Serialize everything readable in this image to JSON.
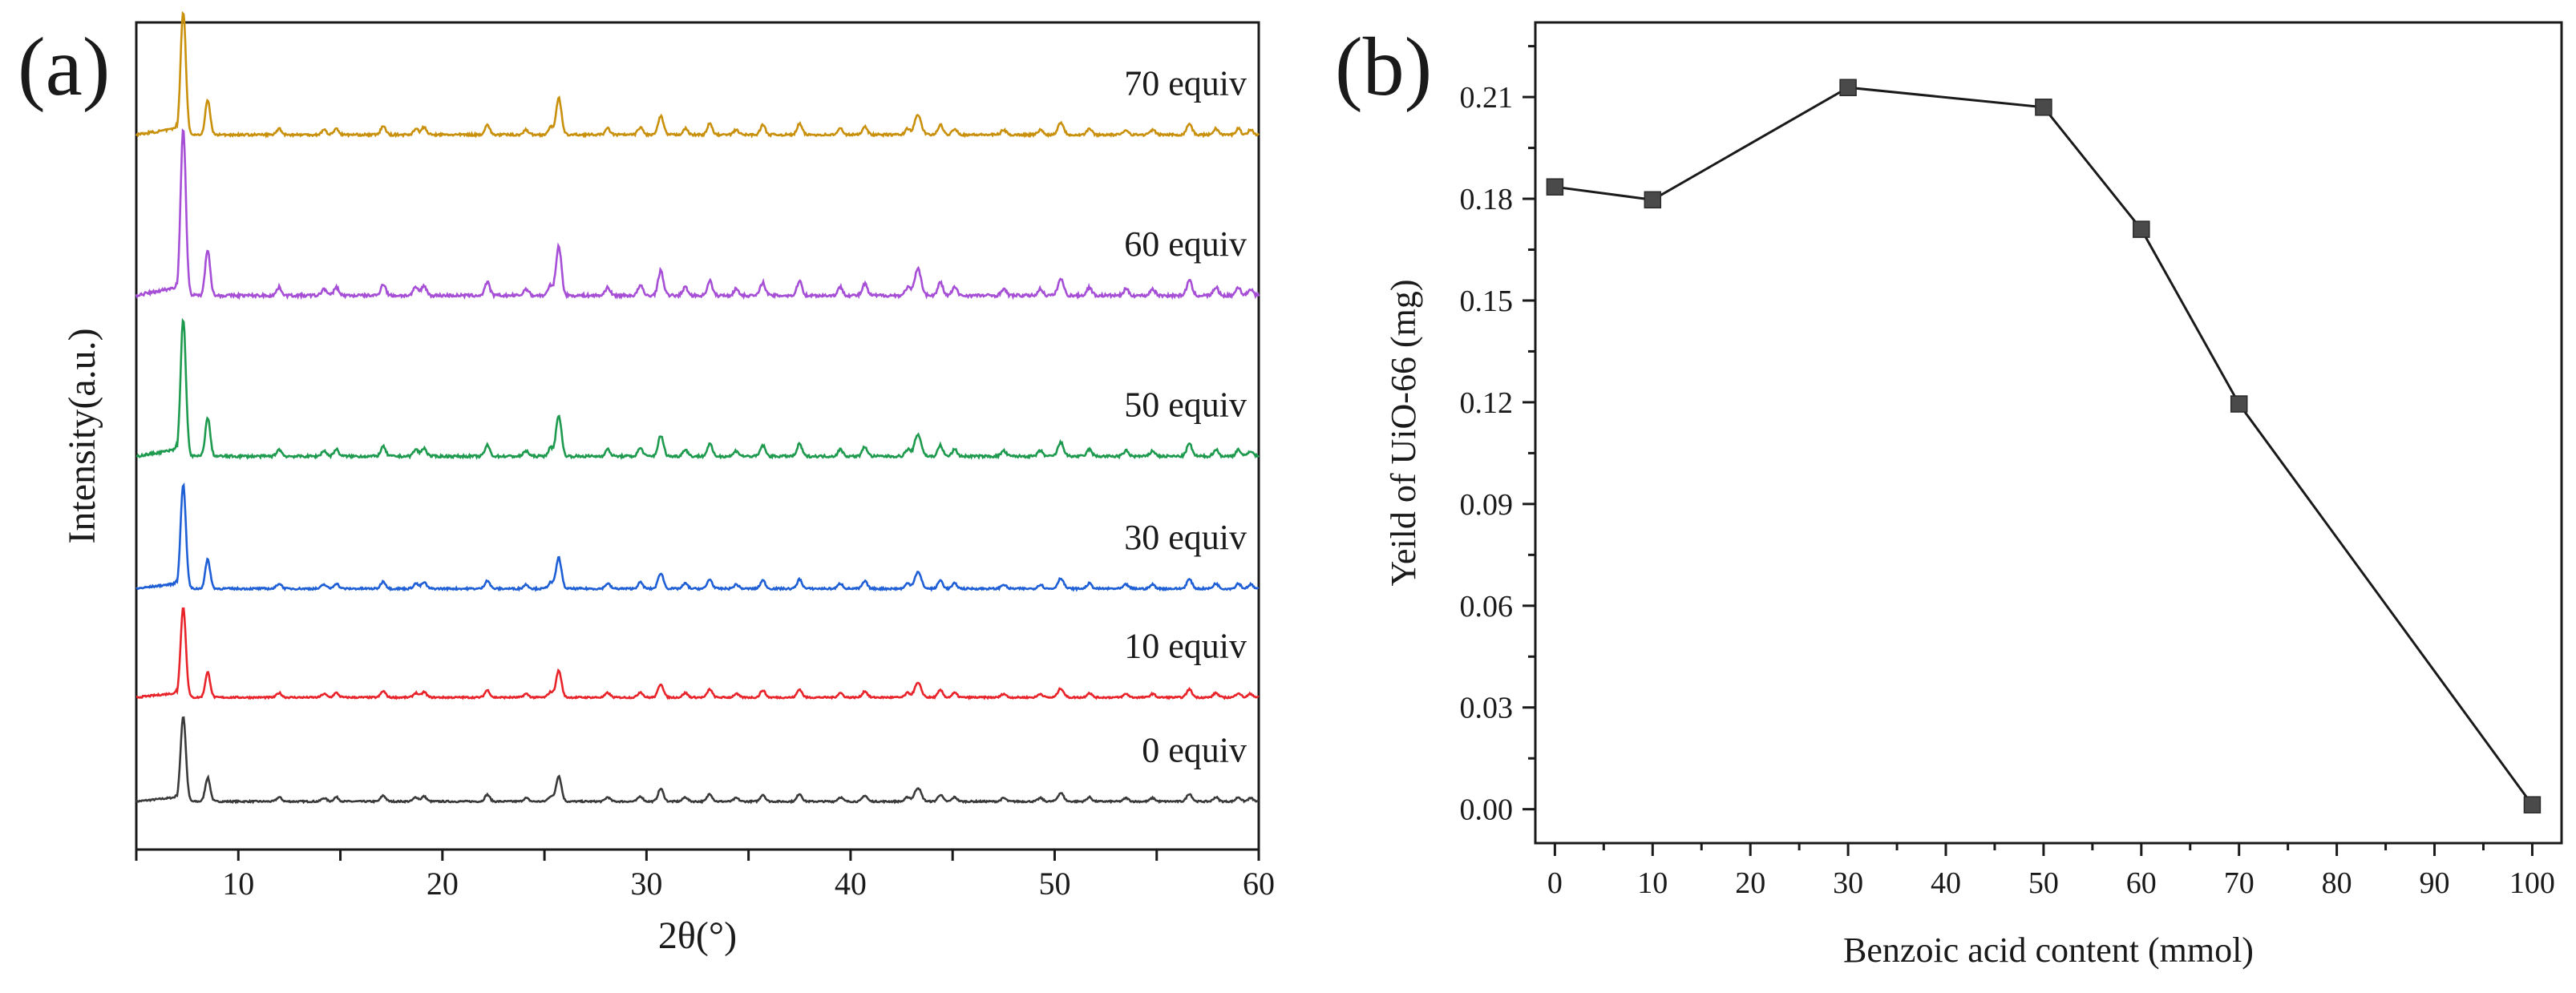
{
  "chart_data": [
    {
      "panel_label": "(a)",
      "type": "line",
      "xlabel": "2θ(°)",
      "ylabel": "Intensity(a.u.)",
      "xlim": [
        5,
        60
      ],
      "xticks": [
        10,
        20,
        30,
        40,
        50,
        60
      ],
      "yticks": [],
      "grid": false,
      "legend": "inline labels right of each trace",
      "series": [
        {
          "name": "0  equiv",
          "color": "#3a3a3a",
          "baseline": 0.0,
          "scale": 0.9
        },
        {
          "name": "10 equiv",
          "color": "#e8232a",
          "baseline": 1.1,
          "scale": 0.95
        },
        {
          "name": "30 equiv",
          "color": "#1f5fd6",
          "baseline": 2.25,
          "scale": 1.1
        },
        {
          "name": "50 equiv",
          "color": "#1e9a4e",
          "baseline": 3.65,
          "scale": 1.45
        },
        {
          "name": "60 equiv",
          "color": "#a64fd6",
          "baseline": 5.35,
          "scale": 1.75
        },
        {
          "name": "70 equiv",
          "color": "#c9900c",
          "baseline": 7.05,
          "scale": 1.3
        }
      ],
      "peaks": [
        {
          "x": 7.3,
          "h": 1.0,
          "w": 0.13
        },
        {
          "x": 8.5,
          "h": 0.28,
          "w": 0.12
        },
        {
          "x": 12.0,
          "h": 0.05,
          "w": 0.12
        },
        {
          "x": 14.2,
          "h": 0.04,
          "w": 0.12
        },
        {
          "x": 14.8,
          "h": 0.05,
          "w": 0.12
        },
        {
          "x": 17.1,
          "h": 0.07,
          "w": 0.12
        },
        {
          "x": 18.7,
          "h": 0.05,
          "w": 0.12
        },
        {
          "x": 19.1,
          "h": 0.06,
          "w": 0.12
        },
        {
          "x": 22.2,
          "h": 0.08,
          "w": 0.12
        },
        {
          "x": 24.1,
          "h": 0.04,
          "w": 0.12
        },
        {
          "x": 25.3,
          "h": 0.06,
          "w": 0.12
        },
        {
          "x": 25.7,
          "h": 0.3,
          "w": 0.13
        },
        {
          "x": 28.1,
          "h": 0.05,
          "w": 0.12
        },
        {
          "x": 29.7,
          "h": 0.06,
          "w": 0.12
        },
        {
          "x": 30.7,
          "h": 0.15,
          "w": 0.13
        },
        {
          "x": 31.9,
          "h": 0.05,
          "w": 0.12
        },
        {
          "x": 33.1,
          "h": 0.09,
          "w": 0.12
        },
        {
          "x": 34.4,
          "h": 0.04,
          "w": 0.12
        },
        {
          "x": 35.7,
          "h": 0.08,
          "w": 0.12
        },
        {
          "x": 37.5,
          "h": 0.09,
          "w": 0.12
        },
        {
          "x": 39.5,
          "h": 0.05,
          "w": 0.12
        },
        {
          "x": 40.7,
          "h": 0.07,
          "w": 0.12
        },
        {
          "x": 42.8,
          "h": 0.05,
          "w": 0.12
        },
        {
          "x": 43.3,
          "h": 0.16,
          "w": 0.16
        },
        {
          "x": 44.4,
          "h": 0.08,
          "w": 0.12
        },
        {
          "x": 45.1,
          "h": 0.05,
          "w": 0.12
        },
        {
          "x": 47.5,
          "h": 0.04,
          "w": 0.12
        },
        {
          "x": 49.3,
          "h": 0.04,
          "w": 0.12
        },
        {
          "x": 50.3,
          "h": 0.1,
          "w": 0.14
        },
        {
          "x": 51.7,
          "h": 0.05,
          "w": 0.12
        },
        {
          "x": 53.5,
          "h": 0.04,
          "w": 0.12
        },
        {
          "x": 54.8,
          "h": 0.04,
          "w": 0.12
        },
        {
          "x": 56.6,
          "h": 0.09,
          "w": 0.13
        },
        {
          "x": 57.9,
          "h": 0.05,
          "w": 0.12
        },
        {
          "x": 59.0,
          "h": 0.05,
          "w": 0.12
        },
        {
          "x": 59.6,
          "h": 0.04,
          "w": 0.12
        }
      ]
    },
    {
      "panel_label": "(b)",
      "type": "line",
      "xlabel": "Benzoic acid content (mmol)",
      "ylabel": "Yeild of UiO-66 (mg)",
      "xlim": [
        -2,
        103
      ],
      "ylim": [
        -0.01,
        0.232
      ],
      "xticks": [
        0,
        10,
        20,
        30,
        40,
        50,
        60,
        70,
        80,
        90,
        100
      ],
      "yticks": [
        "0.00",
        "0.03",
        "0.06",
        "0.09",
        "0.12",
        "0.15",
        "0.18",
        "0.21"
      ],
      "grid": false,
      "marker": "square",
      "line_color": "#1a1a1a",
      "marker_color": "#4a4a4a",
      "x": [
        0,
        10,
        30,
        50,
        60,
        70,
        100
      ],
      "y": [
        0.1835,
        0.1797,
        0.2128,
        0.207,
        0.171,
        0.1195,
        0.0013
      ]
    }
  ]
}
